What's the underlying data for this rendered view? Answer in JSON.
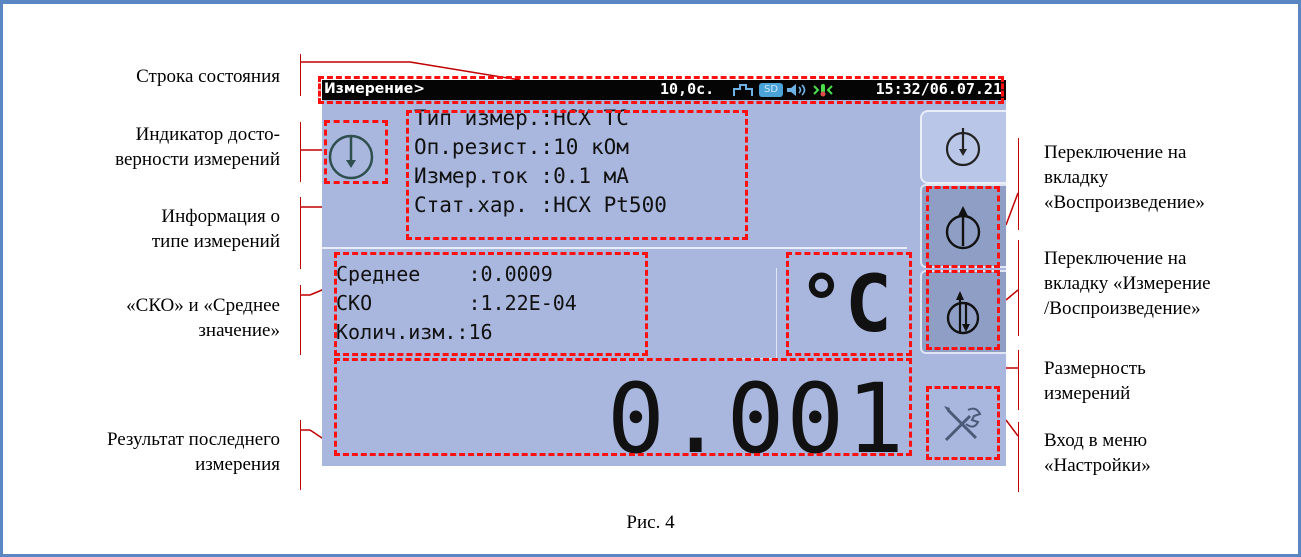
{
  "caption": "Рис. 4",
  "labels": {
    "status_bar": "Строка состояния",
    "validity_1": "Индикатор досто-",
    "validity_2": "верности измерений",
    "info_1": "Информация о",
    "info_2": "типе измерений",
    "sko_1": "«СКО» и «Среднее",
    "sko_2": "значение»",
    "result_1": "Результат последнего",
    "result_2": "измерения",
    "tab_repro_1": "Переключение на",
    "tab_repro_2": "вкладку",
    "tab_repro_3": "«Воспроизведение»",
    "tab_mr_1": "Переключение на",
    "tab_mr_2": "вкладку «Измерение",
    "tab_mr_3": "/Воспроизведение»",
    "unit_1": "Размерность",
    "unit_2": "измерений",
    "settings_1": "Вход в меню",
    "settings_2": "«Настройки»"
  },
  "screen": {
    "status": {
      "title": "Измерение>",
      "interval": "10,0с.",
      "sd": "SD",
      "clock": "15:32/06.07.21"
    },
    "info": [
      "Тип измер.:НСХ ТС",
      "Оп.резист.:10 кОм",
      "Измер.ток :0.1 мА",
      "Стат.хар. :НСХ Pt500"
    ],
    "stats": [
      "Среднее    :0.0009",
      "СКО        :1.22Е-04",
      "Колич.изм.:16"
    ],
    "unit": "°C",
    "value": "0.001"
  },
  "colors": {
    "frame": "#5b86c4",
    "annotation": "#c00000",
    "dash": "#ff1010",
    "screen_bg": "#a9b7de"
  }
}
